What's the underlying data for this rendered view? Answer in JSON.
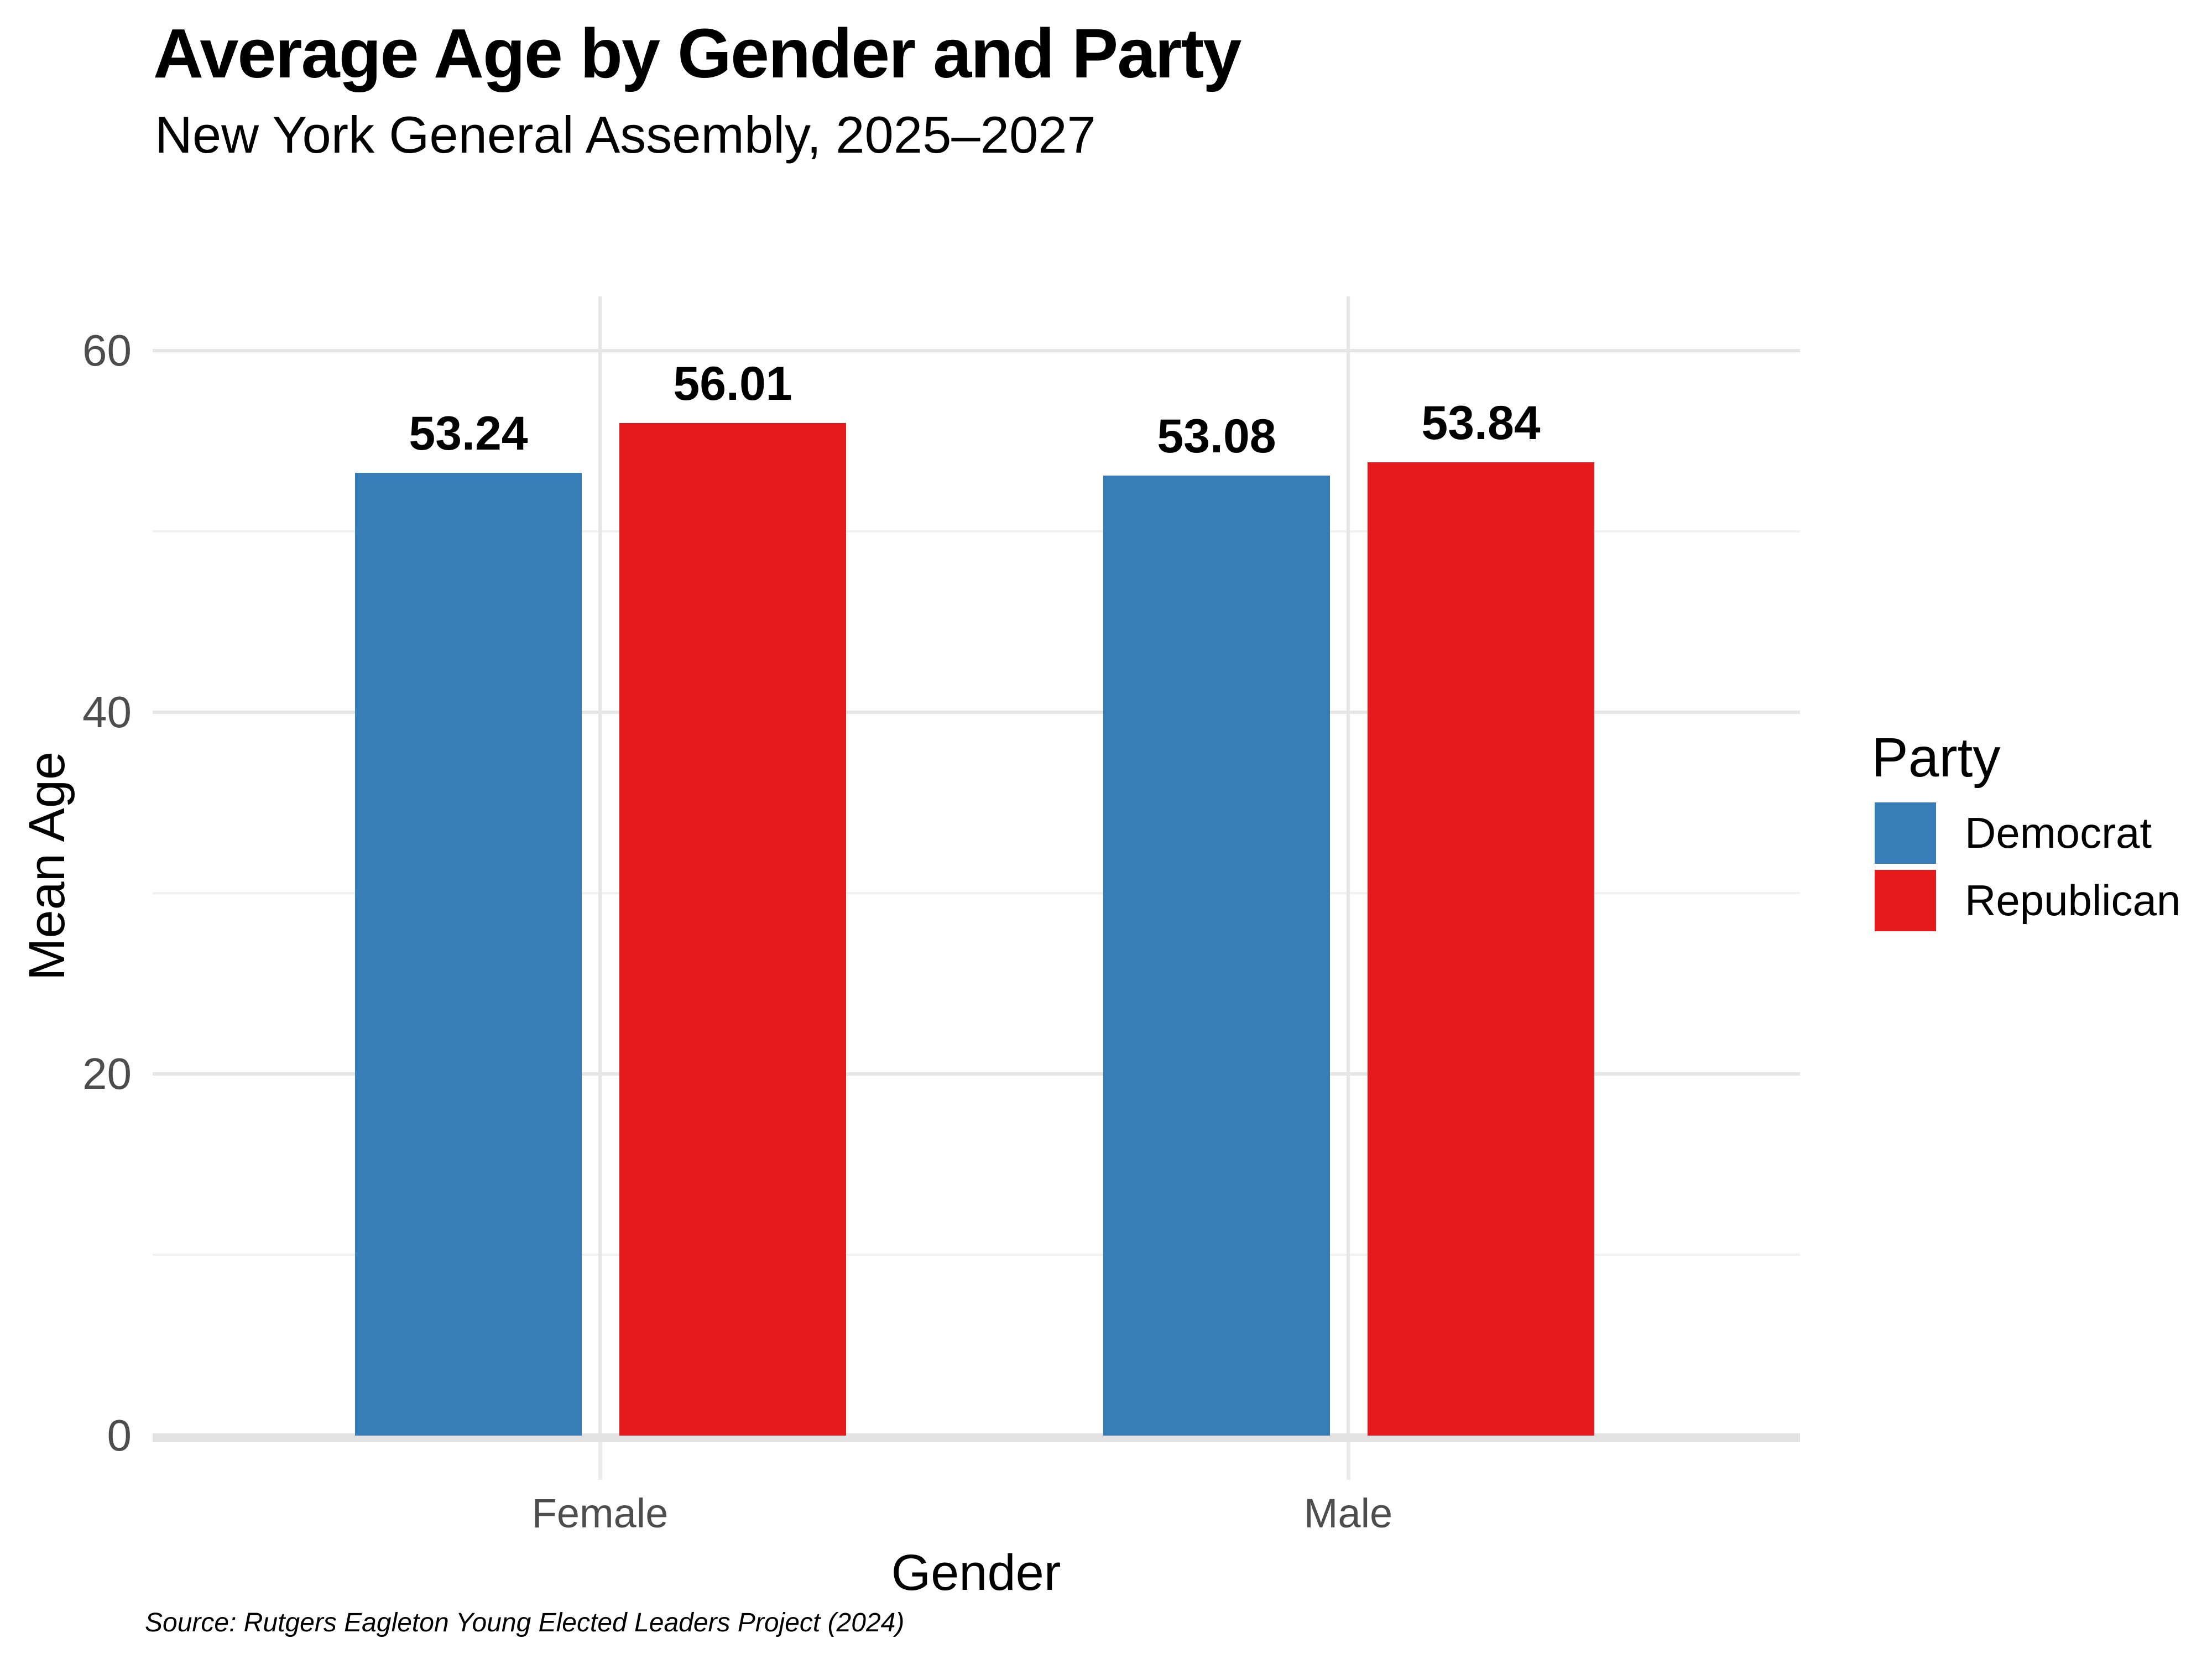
{
  "chart_data": {
    "type": "bar",
    "title": "Average Age by Gender and Party",
    "subtitle": "New York General Assembly, 2025–2027",
    "xlabel": "Gender",
    "ylabel": "Mean Age",
    "categories": [
      "Female",
      "Male"
    ],
    "series": [
      {
        "name": "Democrat",
        "color": "#377EB8",
        "values": [
          53.24,
          53.08
        ]
      },
      {
        "name": "Republican",
        "color": "#E41A1C",
        "values": [
          56.01,
          53.84
        ]
      }
    ],
    "bar_value_labels": [
      "53.24",
      "56.01",
      "53.08",
      "53.84"
    ],
    "ylim": [
      0,
      63
    ],
    "yticks": [
      0,
      20,
      40,
      60
    ],
    "yticks_minor": [
      10,
      30,
      50
    ],
    "grid": {
      "horizontal_major": true,
      "horizontal_minor": true,
      "vertical_at_category_centers": true
    },
    "legend_title": "Party",
    "legend_position": "right",
    "source": "Source: Rutgers Eagleton Young Elected Leaders Project (2024)"
  },
  "colors": {
    "background": "#FFFFFF",
    "democrat": "#377EB8",
    "republican": "#E41A1C",
    "grid_major": "#E6E6E6",
    "grid_minor": "#F1F1F1",
    "axis_baseline": "#E3E3E3",
    "axis_tick": "#ECECEC",
    "axis_text": "#4D4D4D",
    "text": "#000000"
  }
}
